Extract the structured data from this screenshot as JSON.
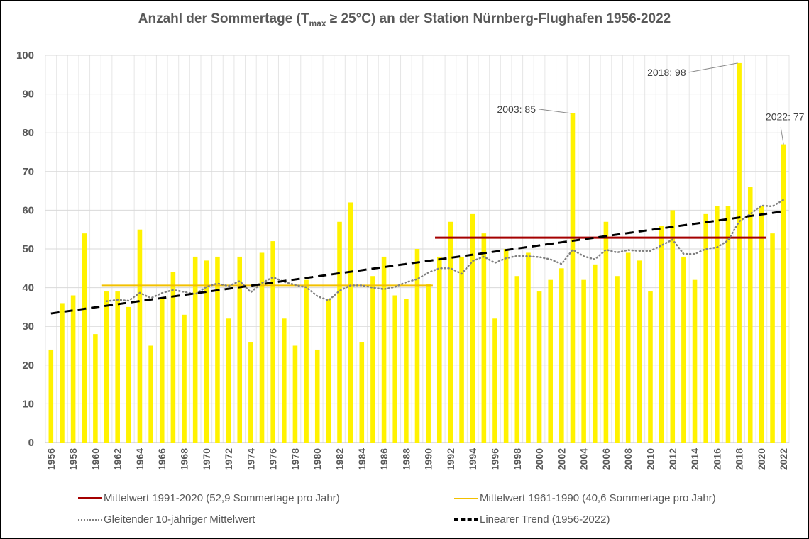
{
  "chart_data": {
    "type": "bar",
    "title_pre": "Anzahl der Sommertage (T",
    "title_sub": "max",
    "title_post": " ≥ 25°C) an der Station Nürnberg-Flughafen 1956-2022",
    "xlabel": "",
    "ylabel": "",
    "ylim": [
      0,
      100
    ],
    "yticks": [
      0,
      10,
      20,
      30,
      40,
      50,
      60,
      70,
      80,
      90,
      100
    ],
    "grid": true,
    "bar_color": "#FFF200",
    "years": [
      1956,
      1957,
      1958,
      1959,
      1960,
      1961,
      1962,
      1963,
      1964,
      1965,
      1966,
      1967,
      1968,
      1969,
      1970,
      1971,
      1972,
      1973,
      1974,
      1975,
      1976,
      1977,
      1978,
      1979,
      1980,
      1981,
      1982,
      1983,
      1984,
      1985,
      1986,
      1987,
      1988,
      1989,
      1990,
      1991,
      1992,
      1993,
      1994,
      1995,
      1996,
      1997,
      1998,
      1999,
      2000,
      2001,
      2002,
      2003,
      2004,
      2005,
      2006,
      2007,
      2008,
      2009,
      2010,
      2011,
      2012,
      2013,
      2014,
      2015,
      2016,
      2017,
      2018,
      2019,
      2020,
      2021,
      2022
    ],
    "values": [
      24,
      36,
      38,
      54,
      28,
      39,
      39,
      35,
      55,
      25,
      37,
      44,
      33,
      48,
      47,
      48,
      32,
      48,
      26,
      49,
      52,
      32,
      25,
      42,
      24,
      37,
      57,
      62,
      26,
      43,
      48,
      38,
      37,
      50,
      41,
      48,
      57,
      48,
      59,
      54,
      32,
      50,
      43,
      49,
      39,
      42,
      45,
      85,
      42,
      46,
      57,
      43,
      49,
      47,
      39,
      56,
      60,
      48,
      42,
      59,
      61,
      61,
      98,
      66,
      61,
      54,
      77
    ],
    "reference_lines": [
      {
        "name": "Mittelwert 1991-2020 (52,9 Sommertage pro Jahr)",
        "value": 52.9,
        "from": 1991,
        "to": 2020,
        "color": "#A50000"
      },
      {
        "name": "Mittelwert 1961-1990 (40,6 Sommertage pro Jahr)",
        "value": 40.6,
        "from": 1961,
        "to": 1990,
        "color": "#F2C000"
      }
    ],
    "moving_average": {
      "name": "Gleitender 10-jähriger Mittelwert",
      "window": 10,
      "color": "#808080"
    },
    "trend": {
      "name": "Linearer Trend (1956-2022)",
      "color": "#000000"
    },
    "annotations": [
      {
        "year": 2003,
        "label": "2003: 85"
      },
      {
        "year": 2018,
        "label": "2018: 98"
      },
      {
        "year": 2022,
        "label": "2022: 77"
      }
    ]
  }
}
